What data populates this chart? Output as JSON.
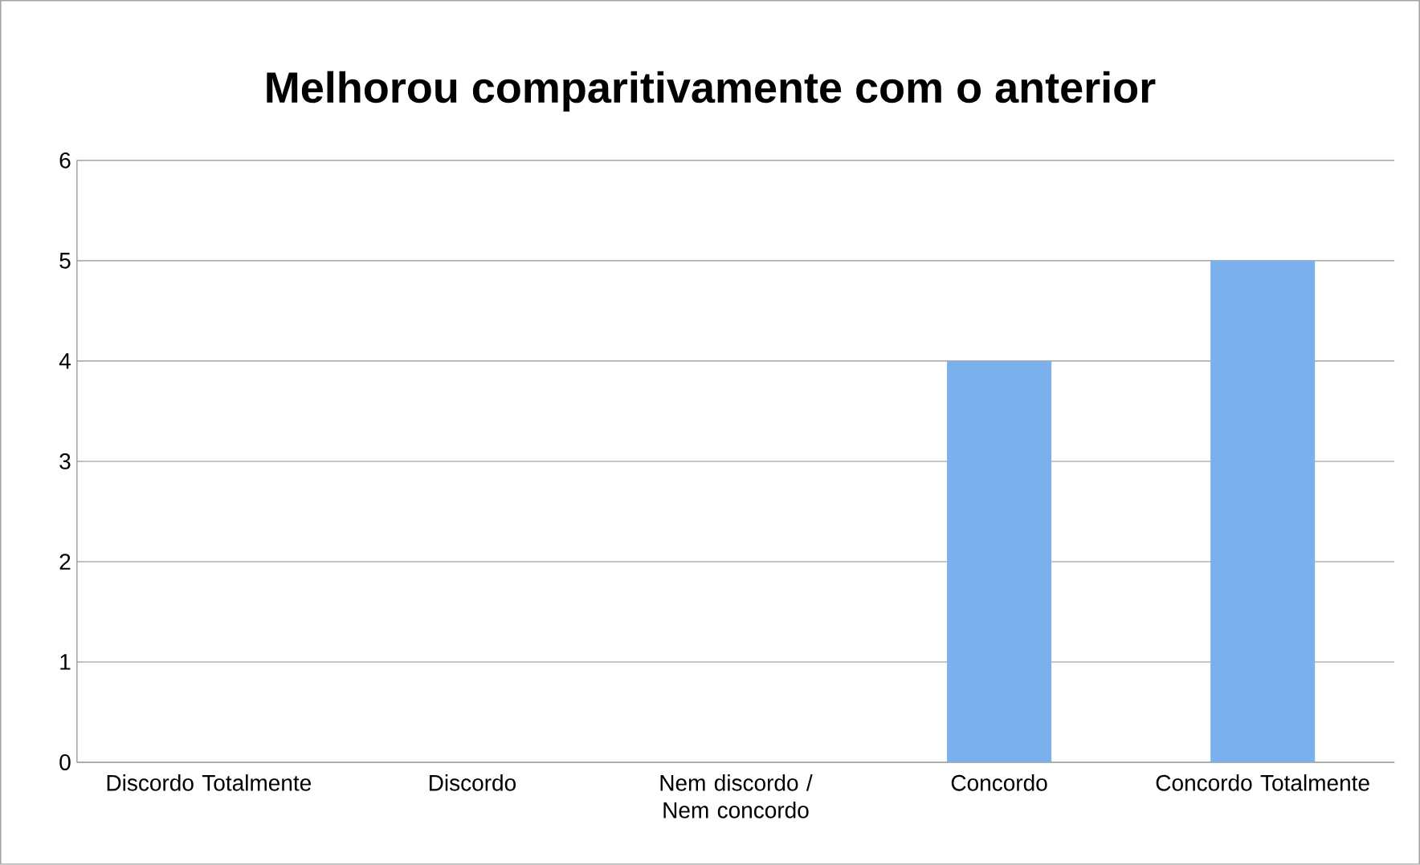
{
  "chart_data": {
    "type": "bar",
    "title": "Melhorou comparitivamente com o anterior",
    "categories": [
      "Discordo Totalmente",
      "Discordo",
      "Nem discordo / Nem concordo",
      "Concordo",
      "Concordo Totalmente"
    ],
    "values": [
      0,
      0,
      0,
      4,
      5
    ],
    "color": "#7ab0ec",
    "ylim": [
      0,
      6
    ],
    "yticks": [
      0,
      1,
      2,
      3,
      4,
      5,
      6
    ],
    "grid": "y"
  }
}
